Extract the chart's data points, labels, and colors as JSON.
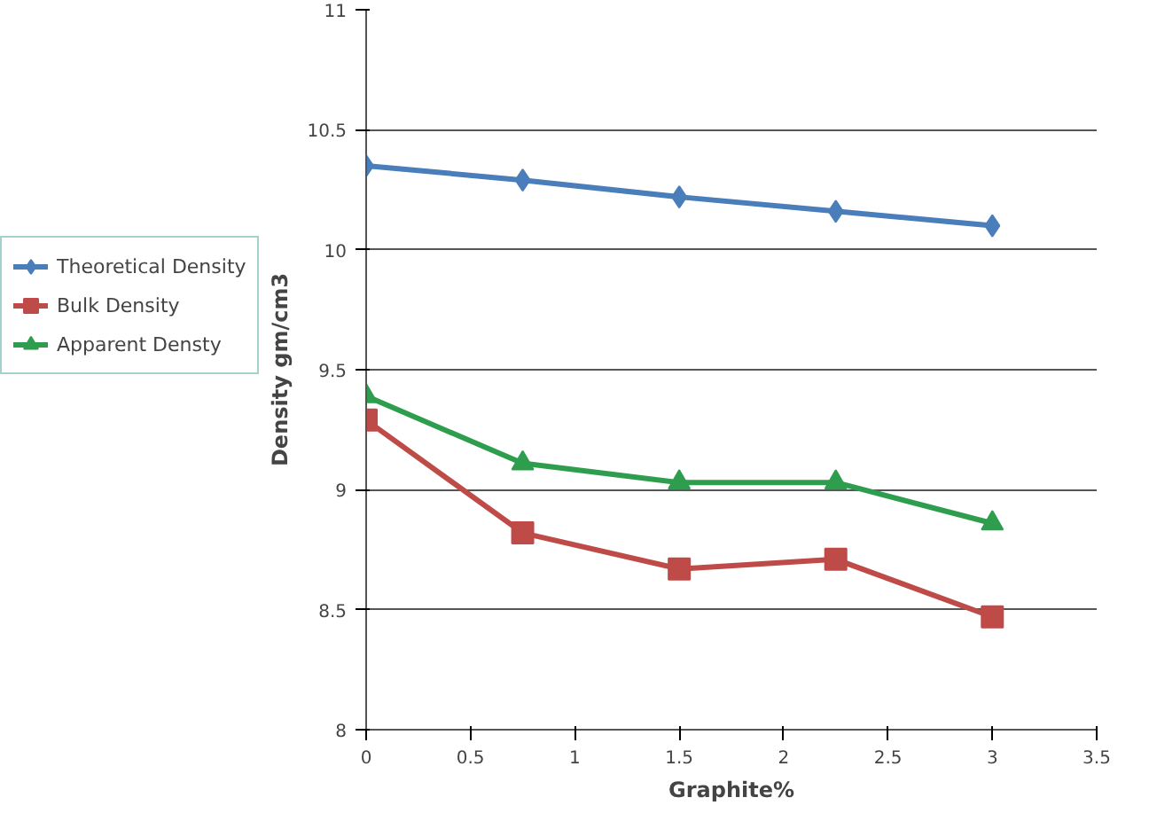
{
  "chart_data": {
    "type": "line",
    "xlabel": "Graphite%",
    "ylabel": "Density gm/cm3",
    "x": [
      0,
      0.75,
      1.5,
      2.25,
      3
    ],
    "series": [
      {
        "name": "Theoretical Density",
        "color": "#4a7ebb",
        "marker": "diamond",
        "values": [
          10.35,
          10.29,
          10.22,
          10.16,
          10.1
        ]
      },
      {
        "name": "Bulk Density",
        "color": "#be4b48",
        "marker": "square",
        "values": [
          9.29,
          8.82,
          8.67,
          8.71,
          8.47
        ]
      },
      {
        "name": "Apparent Densty",
        "color": "#2e9e4e",
        "marker": "triangle",
        "values": [
          9.39,
          9.11,
          9.03,
          9.03,
          8.86
        ]
      }
    ],
    "xlim": [
      0,
      3.5
    ],
    "xticks": [
      0,
      0.5,
      1,
      1.5,
      2,
      2.5,
      3,
      3.5
    ],
    "ylim": [
      8,
      11
    ],
    "yticks": [
      8,
      8.5,
      9,
      9.5,
      10,
      10.5,
      11
    ],
    "grid": "y",
    "legend": "left",
    "line_style": "solid"
  }
}
